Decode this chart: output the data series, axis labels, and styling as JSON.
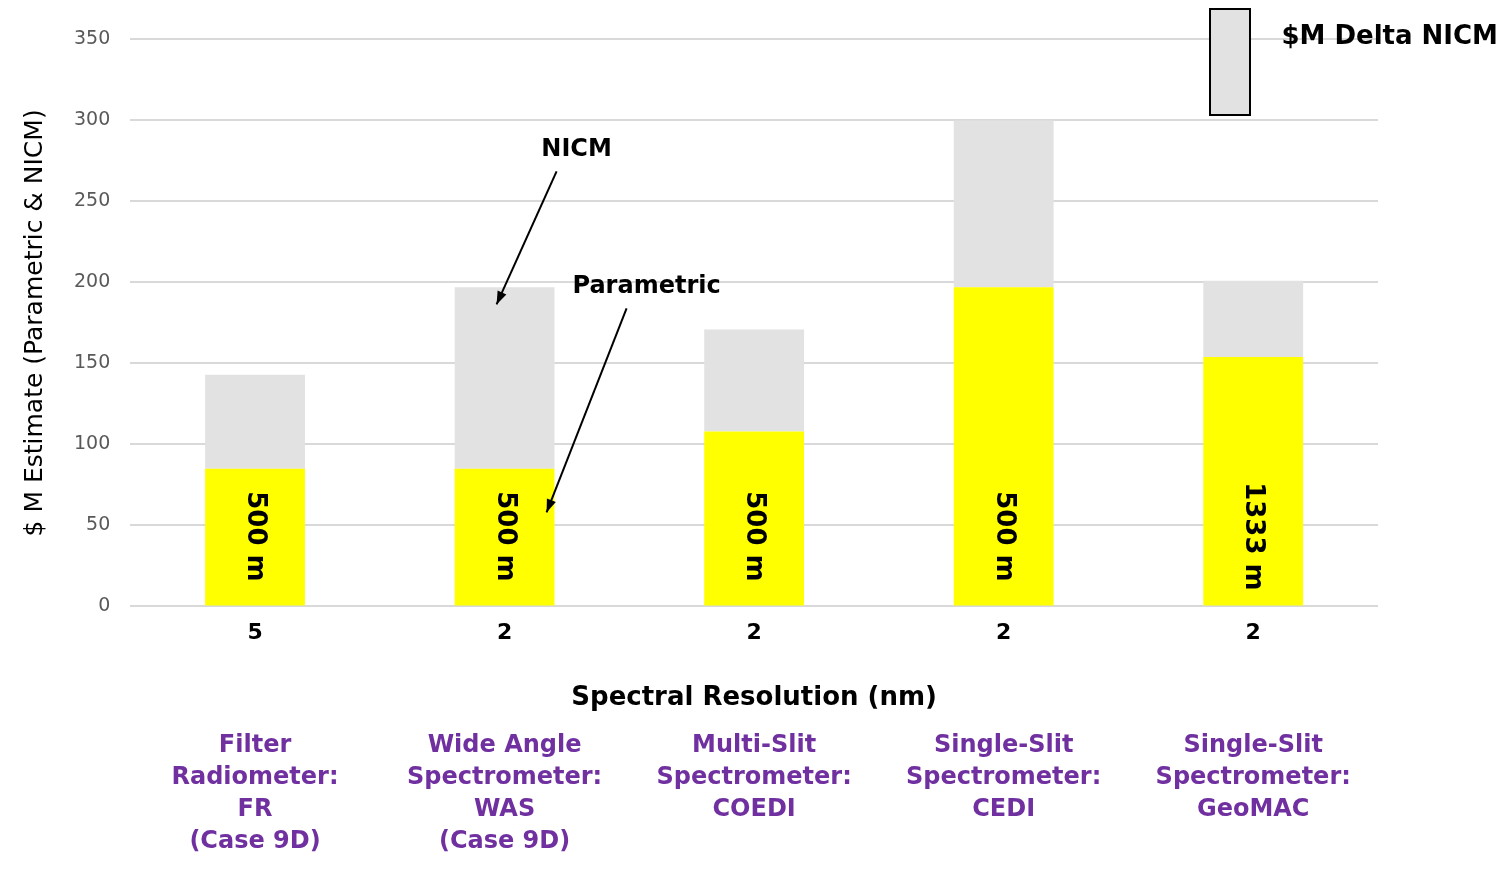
{
  "chart_data": {
    "type": "bar",
    "stacked": true,
    "xlabel": "Spectral Resolution (nm)",
    "ylabel": "$ M Estimate (Parametric & NICM)",
    "categories": [
      "5",
      "2",
      "2",
      "2",
      "2"
    ],
    "series": [
      {
        "color": "#ffff00",
        "values": [
          85,
          85,
          108,
          197,
          154
        ]
      },
      {
        "name": "$M Delta NICM",
        "color": "#e2e2e2",
        "values": [
          58,
          112,
          63,
          103,
          47
        ]
      }
    ],
    "ylim": [
      0,
      350
    ],
    "yticks": [
      0,
      50,
      100,
      150,
      200,
      250,
      300,
      350
    ],
    "grid": "y",
    "legend": "top right",
    "annotations": [
      "NICM",
      "Parametric",
      "500 m",
      "500 m",
      "500 m",
      "500 m",
      "1333 m",
      "Filter\nRadiometer:\nFR\n(Case 9D)",
      "Wide Angle\nSpectrometer:\nWAS\n(Case 9D)",
      "Multi-Slit\nSpectrometer:\nCOEDI",
      "Single-Slit\nSpectrometer:\nCEDI",
      "Single-Slit\nSpectrometer:\nGeoMAC"
    ]
  }
}
